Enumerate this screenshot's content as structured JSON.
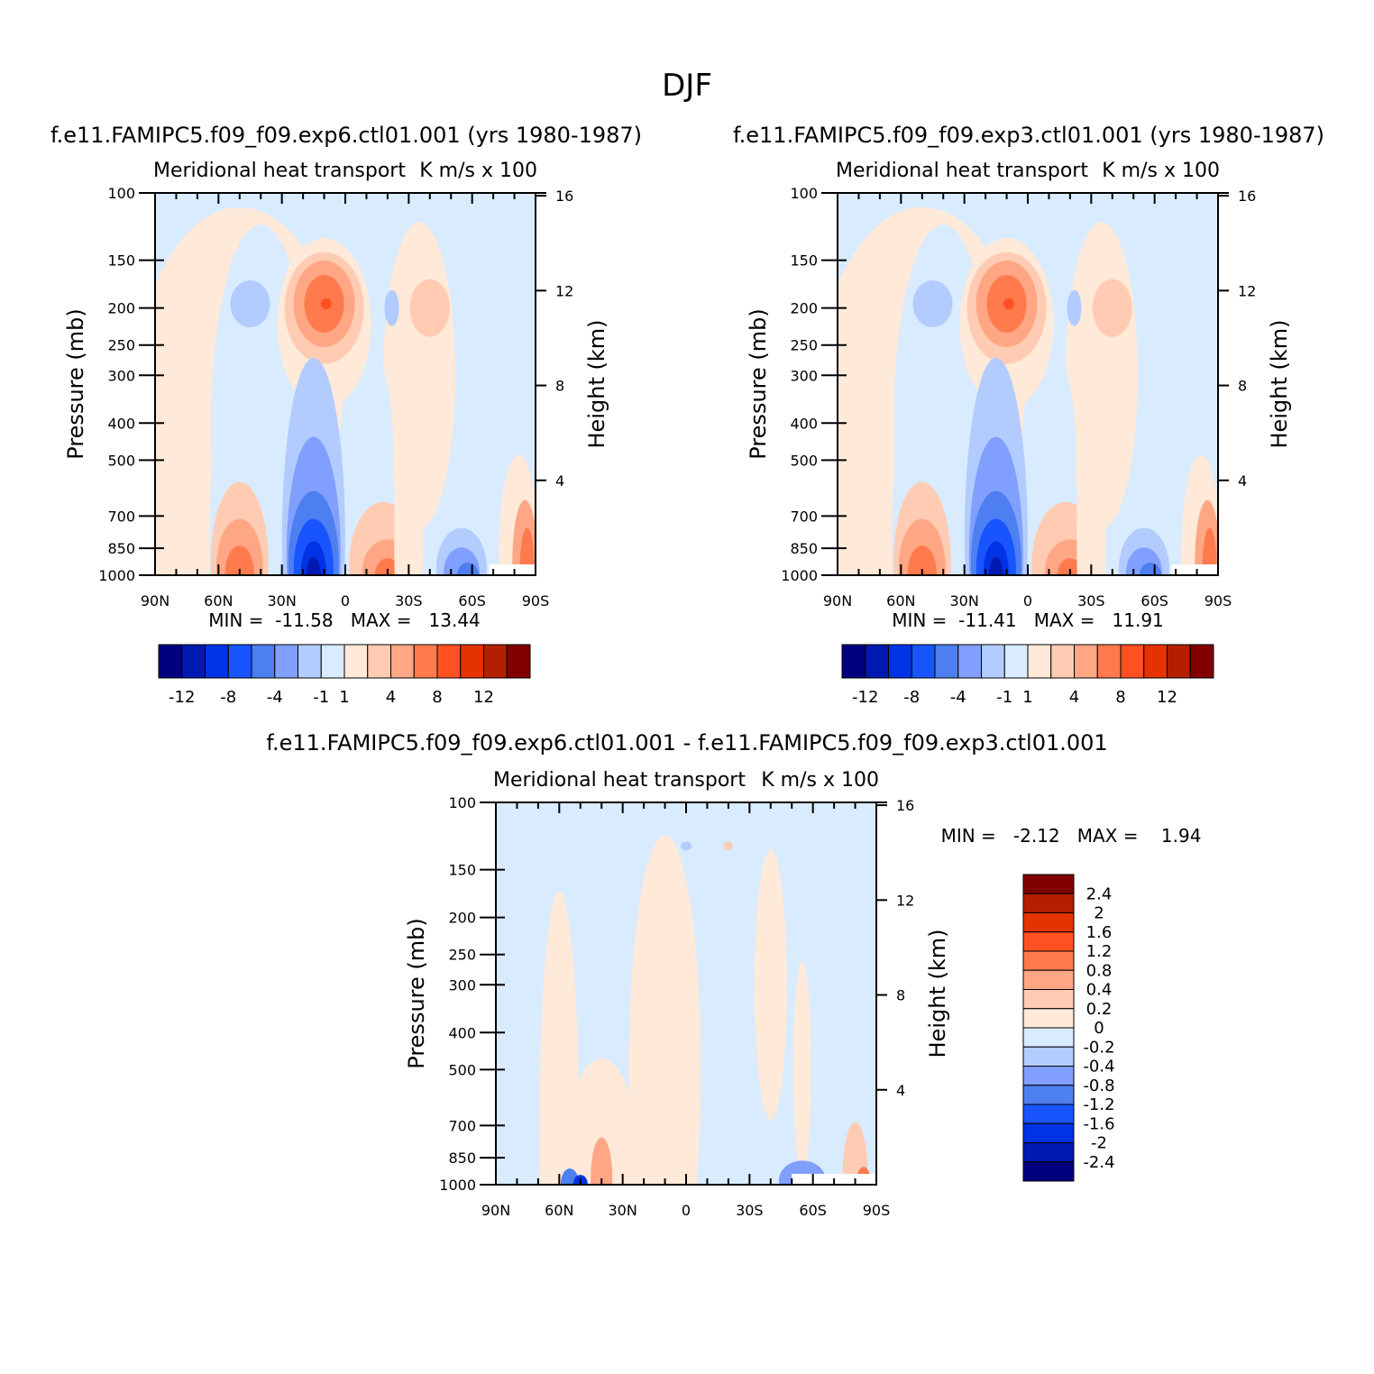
{
  "figure": {
    "title": "DJF"
  },
  "colors": {
    "abs": [
      "#00007f",
      "#0019b2",
      "#0033e5",
      "#1955ff",
      "#4d7ff0",
      "#809fff",
      "#b3ccff",
      "#d9ebff",
      "#ffe9d9",
      "#ffccb3",
      "#ffa685",
      "#ff7a4d",
      "#ff5022",
      "#e53300",
      "#b31f00",
      "#800000"
    ],
    "diff": [
      "#00007f",
      "#0019b2",
      "#0033e5",
      "#1955ff",
      "#4d7ff0",
      "#809fff",
      "#b3ccff",
      "#d9ebff",
      "#ffe9d9",
      "#ffccb3",
      "#ffa685",
      "#ff7a4d",
      "#ff5022",
      "#e53300",
      "#b31f00",
      "#800000"
    ]
  },
  "panels": [
    {
      "id": "exp6",
      "title": "f.e11.FAMIPC5.f09_f09.exp6.ctl01.001 (yrs 1980-1987)",
      "left_label": "Meridional heat transport",
      "right_label": "K m/s x 100",
      "minmax": "MIN =  -11.58   MAX =   13.44"
    },
    {
      "id": "exp3",
      "title": "f.e11.FAMIPC5.f09_f09.exp3.ctl01.001 (yrs 1980-1987)",
      "left_label": "Meridional heat transport",
      "right_label": "K m/s x 100",
      "minmax": "MIN =  -11.41   MAX =   11.91"
    },
    {
      "id": "diff",
      "title": "f.e11.FAMIPC5.f09_f09.exp6.ctl01.001 - f.e11.FAMIPC5.f09_f09.exp3.ctl01.001",
      "left_label": "Meridional heat transport",
      "right_label": "K m/s x 100",
      "minmax": "MIN =   -2.12   MAX =    1.94"
    }
  ],
  "axes": {
    "ylabel": "Pressure (mb)",
    "y2label": "Height (km)",
    "pressure_ticks": [
      "100",
      "150",
      "200",
      "250",
      "300",
      "400",
      "500",
      "700",
      "850",
      "1000"
    ],
    "height_ticks": [
      "16",
      "12",
      "8",
      "4"
    ],
    "lat_ticks": [
      "90N",
      "60N",
      "30N",
      "0",
      "30S",
      "60S",
      "90S"
    ]
  },
  "colorbars": {
    "abs_labels": [
      "-12",
      "-8",
      "-4",
      "-1",
      "1",
      "4",
      "8",
      "12"
    ],
    "diff_labels": [
      "2.4",
      "2",
      "1.6",
      "1.2",
      "0.8",
      "0.4",
      "0.2",
      "0",
      "-0.2",
      "-0.4",
      "-0.8",
      "-1.2",
      "-1.6",
      "-2",
      "-2.4"
    ]
  },
  "chart_data": [
    {
      "type": "heatmap",
      "title": "f.e11.FAMIPC5.f09_f09.exp6.ctl01.001 (yrs 1980-1987)",
      "subtitle": "Meridional heat transport",
      "units": "K m/s x 100",
      "xlabel": "",
      "ylabel": "Pressure (mb)",
      "y2label": "Height (km)",
      "x_ticks": [
        "90N",
        "60N",
        "30N",
        "0",
        "30S",
        "60S",
        "90S"
      ],
      "y_ticks": [
        100,
        150,
        200,
        250,
        300,
        400,
        500,
        700,
        850,
        1000
      ],
      "ylim": [
        1000,
        100
      ],
      "levels": [
        -12,
        -10,
        -8,
        -6,
        -4,
        -2,
        -1,
        0,
        1,
        2,
        4,
        6,
        8,
        10,
        12
      ],
      "min": -11.58,
      "max": 13.44,
      "features": [
        {
          "lat": 10,
          "p": 200,
          "value": 10
        },
        {
          "lat": 40,
          "p": 200,
          "value": -2
        },
        {
          "lat": -40,
          "p": 200,
          "value": 2
        },
        {
          "lat": 15,
          "p": 960,
          "value": -11
        },
        {
          "lat": 50,
          "p": 960,
          "value": 7
        },
        {
          "lat": -20,
          "p": 975,
          "value": 6
        },
        {
          "lat": -55,
          "p": 960,
          "value": -4
        },
        {
          "lat": -85,
          "p": 920,
          "value": 7
        }
      ]
    },
    {
      "type": "heatmap",
      "title": "f.e11.FAMIPC5.f09_f09.exp3.ctl01.001 (yrs 1980-1987)",
      "subtitle": "Meridional heat transport",
      "units": "K m/s x 100",
      "xlabel": "",
      "ylabel": "Pressure (mb)",
      "y2label": "Height (km)",
      "x_ticks": [
        "90N",
        "60N",
        "30N",
        "0",
        "30S",
        "60S",
        "90S"
      ],
      "y_ticks": [
        100,
        150,
        200,
        250,
        300,
        400,
        500,
        700,
        850,
        1000
      ],
      "ylim": [
        1000,
        100
      ],
      "levels": [
        -12,
        -10,
        -8,
        -6,
        -4,
        -2,
        -1,
        0,
        1,
        2,
        4,
        6,
        8,
        10,
        12
      ],
      "min": -11.41,
      "max": 11.91,
      "features": [
        {
          "lat": 10,
          "p": 200,
          "value": 9
        },
        {
          "lat": 40,
          "p": 200,
          "value": -2
        },
        {
          "lat": -40,
          "p": 200,
          "value": 2
        },
        {
          "lat": 15,
          "p": 960,
          "value": -11
        },
        {
          "lat": 50,
          "p": 960,
          "value": 7
        },
        {
          "lat": -20,
          "p": 975,
          "value": 6
        },
        {
          "lat": -55,
          "p": 960,
          "value": -5
        },
        {
          "lat": -85,
          "p": 920,
          "value": 7
        }
      ]
    },
    {
      "type": "heatmap",
      "title": "f.e11.FAMIPC5.f09_f09.exp6.ctl01.001 - f.e11.FAMIPC5.f09_f09.exp3.ctl01.001",
      "subtitle": "Meridional heat transport",
      "units": "K m/s x 100",
      "xlabel": "",
      "ylabel": "Pressure (mb)",
      "y2label": "Height (km)",
      "x_ticks": [
        "90N",
        "60N",
        "30N",
        "0",
        "30S",
        "60S",
        "90S"
      ],
      "y_ticks": [
        100,
        150,
        200,
        250,
        300,
        400,
        500,
        700,
        850,
        1000
      ],
      "ylim": [
        1000,
        100
      ],
      "levels": [
        -2.4,
        -2,
        -1.6,
        -1.2,
        -0.8,
        -0.4,
        -0.2,
        0,
        0.2,
        0.4,
        0.8,
        1.2,
        1.6,
        2,
        2.4
      ],
      "min": -2.12,
      "max": 1.94,
      "features": [
        {
          "lat": 10,
          "p": 500,
          "value": 0.1
        },
        {
          "lat": 50,
          "p": 990,
          "value": -1.5
        },
        {
          "lat": 40,
          "p": 950,
          "value": 0.6
        },
        {
          "lat": -55,
          "p": 970,
          "value": -1.0
        },
        {
          "lat": -85,
          "p": 950,
          "value": 1.0
        }
      ]
    }
  ]
}
